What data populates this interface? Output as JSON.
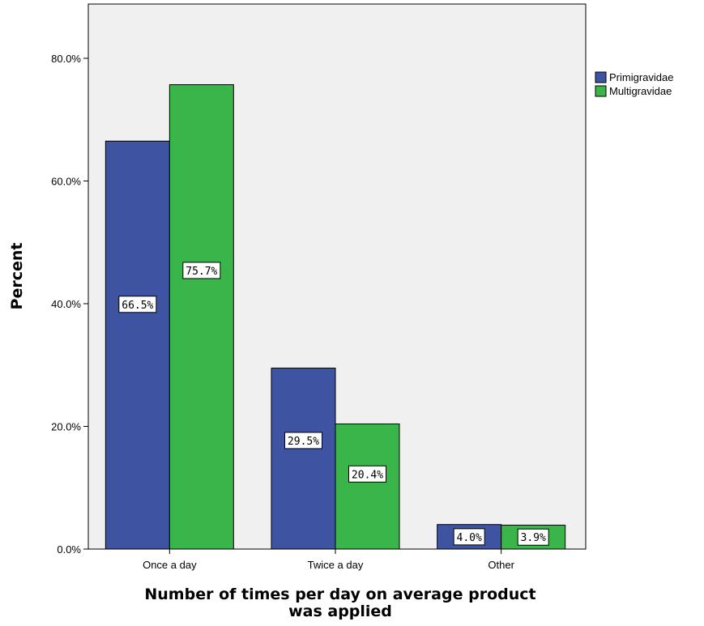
{
  "chart_data": {
    "type": "bar",
    "title": "",
    "xlabel": "Number of times per day on average product was applied",
    "ylabel": "Percent",
    "categories": [
      "Once a day",
      "Twice a day",
      "Other"
    ],
    "series": [
      {
        "name": "Primigravidae",
        "values": [
          66.5,
          29.5,
          4.0
        ],
        "labels": [
          "66.5%",
          "29.5%",
          "4.0%"
        ],
        "color": "#3e54a3"
      },
      {
        "name": "Multigravidae",
        "values": [
          75.7,
          20.4,
          3.9
        ],
        "labels": [
          "75.7%",
          "20.4%",
          "3.9%"
        ],
        "color": "#3ab54a"
      }
    ],
    "ylim": [
      0,
      88
    ],
    "yticks": [
      0,
      20,
      40,
      60,
      80
    ],
    "ytick_labels": [
      "0.0%",
      "20.0%",
      "40.0%",
      "60.0%",
      "80.0%"
    ],
    "grid": false,
    "legend_position": "right",
    "plot_background": "#f0f0f0"
  }
}
